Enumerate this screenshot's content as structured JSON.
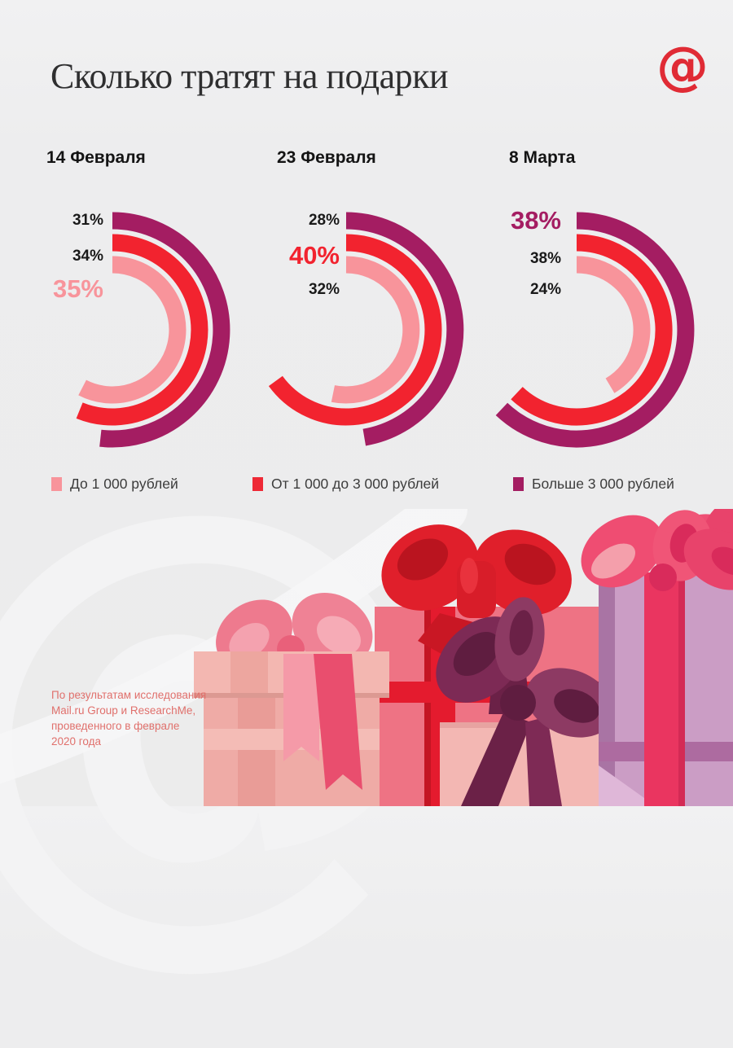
{
  "page": {
    "background": "#ececec"
  },
  "header": {
    "title": "Сколько тратят на подарки",
    "logo_glyph": "@",
    "logo_color": "#e02b35"
  },
  "watermark": {
    "glyph": "@"
  },
  "charts": [
    {
      "date": "14 Февраля",
      "rows": [
        {
          "text": "31%",
          "series": "Больше 3 000 рублей",
          "color": "#1a1a1a",
          "highlight": false
        },
        {
          "text": "34%",
          "series": "От 1 000 до 3 000 рублей",
          "color": "#1a1a1a",
          "highlight": false
        },
        {
          "text": "35%",
          "series": "До 1 000 рублей",
          "color": "#f8949b",
          "highlight": true
        }
      ]
    },
    {
      "date": "23 Февраля",
      "rows": [
        {
          "text": "28%",
          "series": "Больше 3 000 рублей",
          "color": "#1a1a1a",
          "highlight": false
        },
        {
          "text": "40%",
          "series": "От 1 000 до 3 000 рублей",
          "color": "#f2232f",
          "highlight": true
        },
        {
          "text": "32%",
          "series": "До 1 000 рублей",
          "color": "#1a1a1a",
          "highlight": false
        }
      ]
    },
    {
      "date": "8 Марта",
      "rows": [
        {
          "text": "38%",
          "series": "Больше 3 000 рублей",
          "color": "#a41d62",
          "highlight": true
        },
        {
          "text": "38%",
          "series": "От 1 000 до 3 000 рублей",
          "color": "#1a1a1a",
          "highlight": false
        },
        {
          "text": "24%",
          "series": "До 1 000 рублей",
          "color": "#1a1a1a",
          "highlight": false
        }
      ]
    }
  ],
  "legend": [
    {
      "label": "До 1 000 рублей",
      "color": "#f8949b"
    },
    {
      "label": "От 1 000 до 3 000 рублей",
      "color": "#ee2936"
    },
    {
      "label": "Больше 3 000 рублей",
      "color": "#a41d62"
    }
  ],
  "footer": {
    "lines": [
      "По результатам исследования",
      "Mail.ru Group и ResearchMe,",
      "проведенного в феврале",
      "2020 года"
    ]
  },
  "chart_data": {
    "type": "pie",
    "variant": "concentric-arc-progress",
    "title": "Сколько тратят на подарки",
    "unit": "%",
    "categories": [
      "14 Февраля",
      "23 Февраля",
      "8 Марта"
    ],
    "series": [
      {
        "name": "До 1 000 рублей",
        "ring": "inner",
        "color": "#f8949b",
        "values": [
          35,
          32,
          24
        ]
      },
      {
        "name": "От 1 000 до 3 000 рублей",
        "ring": "middle",
        "color": "#f2232f",
        "values": [
          34,
          40,
          38
        ]
      },
      {
        "name": "Больше 3 000 рублей",
        "ring": "outer",
        "color": "#a41d62",
        "values": [
          31,
          28,
          38
        ]
      }
    ],
    "highlighted": [
      {
        "category": "14 Февраля",
        "series": "До 1 000 рублей",
        "value": 35
      },
      {
        "category": "23 Февраля",
        "series": "От 1 000 до 3 000 рублей",
        "value": 40
      },
      {
        "category": "8 Марта",
        "series": "Больше 3 000 рублей",
        "value": 38
      }
    ],
    "layout": {
      "start_angle": "top",
      "direction": "clockwise",
      "legend_position": "bottom",
      "grid": false
    }
  }
}
